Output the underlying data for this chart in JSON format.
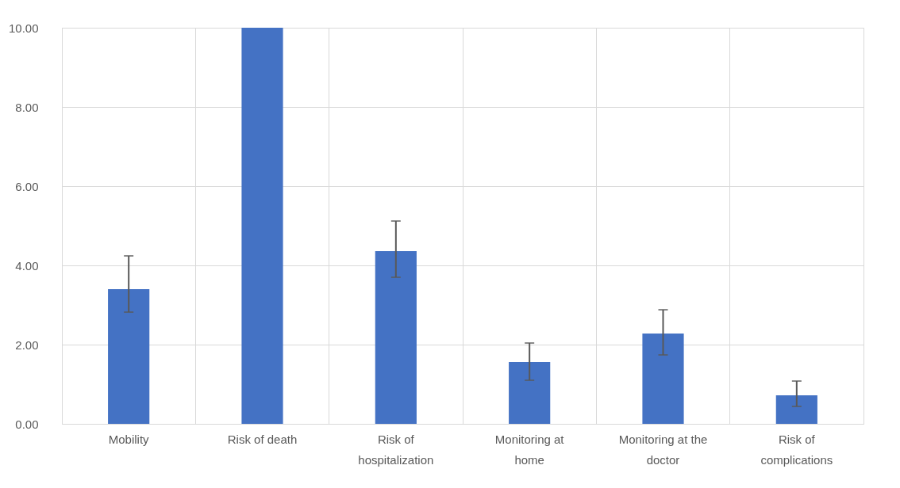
{
  "chart_data": {
    "type": "bar",
    "categories": [
      "Mobility",
      "Risk of death",
      "Risk of hospitalization",
      "Monitoring at home",
      "Monitoring at the doctor",
      "Risk of complications"
    ],
    "values": [
      3.4,
      10,
      4.36,
      1.56,
      2.28,
      0.72
    ],
    "errors": [
      [
        2.82,
        4.24
      ],
      null,
      [
        3.7,
        5.12
      ],
      [
        1.1,
        2.04
      ],
      [
        1.74,
        2.88
      ],
      [
        0.44,
        1.08
      ]
    ],
    "color": "#4472c4",
    "ylim": [
      0,
      10
    ],
    "yticks": [
      {
        "value": 0,
        "label": "0.00"
      },
      {
        "value": 2,
        "label": "2.00"
      },
      {
        "value": 4,
        "label": "4.00"
      },
      {
        "value": 6,
        "label": "6.00"
      },
      {
        "value": 8,
        "label": "8.00"
      },
      {
        "value": 10,
        "label": "10.00"
      }
    ],
    "grid": true
  }
}
